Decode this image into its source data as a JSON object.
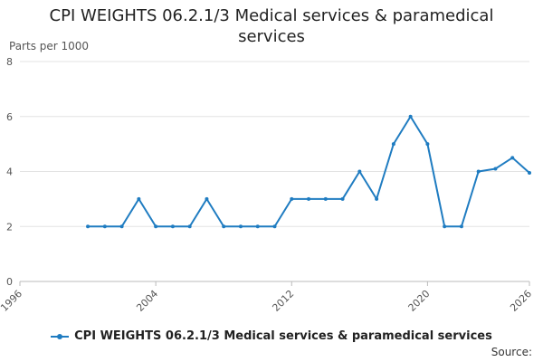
{
  "chart_data": {
    "type": "line",
    "title": "CPI WEIGHTS 06.2.1/3 Medical services & paramedical services",
    "ylabel": "Parts per 1000",
    "xlabel": "",
    "xlim": [
      1996,
      2026
    ],
    "ylim": [
      0,
      8
    ],
    "x_ticks": [
      "1996",
      "2004",
      "2012",
      "2020",
      "2026"
    ],
    "y_ticks": [
      "0",
      "2",
      "4",
      "6",
      "8"
    ],
    "grid": true,
    "legend_position": "bottom",
    "series": [
      {
        "name": "CPI WEIGHTS 06.2.1/3 Medical services & paramedical services",
        "color": "#1f7cc1",
        "x": [
          2000,
          2001,
          2002,
          2003,
          2004,
          2005,
          2006,
          2007,
          2008,
          2009,
          2010,
          2011,
          2012,
          2013,
          2014,
          2015,
          2016,
          2017,
          2018,
          2019,
          2020,
          2021,
          2022,
          2023,
          2024,
          2025,
          2026
        ],
        "y": [
          2,
          2,
          2,
          3,
          2,
          2,
          2,
          3,
          2,
          2,
          2,
          2,
          3,
          3,
          3,
          3,
          4,
          3,
          5,
          6,
          5,
          2,
          2,
          4,
          4.1,
          4.5,
          3.95
        ]
      }
    ]
  },
  "source_label": "Source:"
}
